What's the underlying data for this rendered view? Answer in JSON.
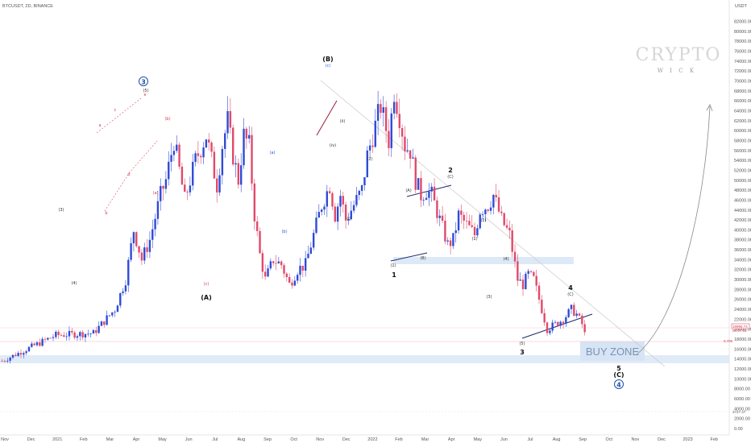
{
  "header": {
    "symbol": "BTCUSDT, 2D, BINANCE"
  },
  "watermark": {
    "brand": "CRYPTO",
    "sub": "W I C K"
  },
  "buy_zone": {
    "label": "BUY ZONE"
  },
  "colors": {
    "up": "#2f4bd6",
    "down": "#e04a6a",
    "zone": "#d6e4f5",
    "zone_text": "#6f8fb8",
    "wave_black": "#111111",
    "circle_blue": "#1f4fa8"
  },
  "chart_data": {
    "type": "candlestick",
    "y_axis": {
      "unit": "USDT",
      "min": 0,
      "max": 85000,
      "ticks": [
        0,
        2000,
        4000,
        6000,
        8000,
        10000,
        12000,
        14000,
        16000,
        18000,
        20000,
        22000,
        24000,
        26000,
        28000,
        30000,
        32000,
        34000,
        36000,
        38000,
        40000,
        42000,
        44000,
        46000,
        48000,
        50000,
        52000,
        54000,
        56000,
        58000,
        60000,
        62000,
        64000,
        66000,
        68000,
        70000,
        72000,
        74000,
        76000,
        78000,
        80000,
        82000
      ]
    },
    "x_axis": {
      "labels": [
        "Nov",
        "Dec",
        "2021",
        "Feb",
        "Mar",
        "Apr",
        "May",
        "Jun",
        "Jul",
        "Aug",
        "Sep",
        "Oct",
        "Nov",
        "Dec",
        "2022",
        "Feb",
        "Mar",
        "Apr",
        "May",
        "Jun",
        "Jul",
        "Aug",
        "Sep",
        "Oct",
        "Nov",
        "Dec",
        "2023",
        "Feb"
      ]
    },
    "price_path": [
      [
        0,
        13600
      ],
      [
        20,
        18800
      ],
      [
        34,
        19200
      ],
      [
        42,
        24000
      ],
      [
        46,
        30000
      ],
      [
        49,
        40000
      ],
      [
        52,
        34000
      ],
      [
        55,
        38000
      ],
      [
        59,
        47000
      ],
      [
        61,
        50000
      ],
      [
        64,
        58000
      ],
      [
        68,
        46000
      ],
      [
        72,
        54000
      ],
      [
        76,
        59000
      ],
      [
        80,
        49000
      ],
      [
        82,
        57000
      ],
      [
        84,
        62000
      ],
      [
        86,
        55000
      ],
      [
        88,
        50000
      ],
      [
        90,
        59000
      ],
      [
        92,
        57000
      ],
      [
        94,
        43000
      ],
      [
        96,
        35000
      ],
      [
        98,
        30000
      ],
      [
        101,
        34000
      ],
      [
        104,
        33000
      ],
      [
        107,
        29000
      ],
      [
        110,
        32000
      ],
      [
        113,
        33000
      ],
      [
        116,
        39000
      ],
      [
        119,
        45000
      ],
      [
        122,
        49000
      ],
      [
        124,
        43000
      ],
      [
        126,
        47000
      ],
      [
        128,
        42000
      ],
      [
        131,
        45000
      ],
      [
        134,
        48000
      ],
      [
        136,
        55000
      ],
      [
        139,
        61000
      ],
      [
        141,
        65000
      ],
      [
        144,
        58000
      ],
      [
        146,
        68000
      ],
      [
        148,
        63000
      ],
      [
        150,
        57000
      ],
      [
        152,
        56000
      ],
      [
        154,
        50000
      ],
      [
        156,
        47000
      ],
      [
        158,
        48000
      ],
      [
        160,
        47000
      ],
      [
        163,
        42000
      ],
      [
        166,
        37000
      ],
      [
        168,
        38000
      ],
      [
        170,
        43000
      ],
      [
        173,
        41000
      ],
      [
        176,
        39000
      ],
      [
        178,
        44000
      ],
      [
        181,
        45000
      ],
      [
        183,
        47000
      ],
      [
        186,
        42000
      ],
      [
        189,
        39000
      ],
      [
        192,
        30000
      ],
      [
        194,
        29000
      ],
      [
        196,
        31000
      ],
      [
        198,
        30000
      ],
      [
        200,
        26000
      ],
      [
        203,
        20000
      ],
      [
        206,
        21000
      ],
      [
        209,
        22000
      ],
      [
        212,
        24000
      ],
      [
        214,
        23000
      ],
      [
        216,
        21000
      ],
      [
        217,
        19000
      ]
    ],
    "annotations": {
      "wave_circle_3": "3",
      "wave_B": "(B)",
      "wave_B_c": "(c)",
      "wave_A": "(A)",
      "wave_1": "1",
      "wave_2": "2",
      "wave_2_C": "(C)",
      "wave_3": "3",
      "wave_4": "4",
      "wave_4_C": "(C)",
      "wave_5": "5",
      "wave_5_C": "(C)",
      "wave_circle_4": "4",
      "sub_A": "(A)",
      "sub_B": "(B)",
      "sub_a": "(a)",
      "sub_b": "(b)",
      "red_a": "(a)",
      "red_b": "(b)",
      "red_c": "(c)",
      "red_a_small": "a",
      "red_b_small": "b",
      "red_c_small": "c",
      "red_d_small": "d",
      "red_e_small": "e",
      "wave_3_small": "(3)",
      "wave_4_small": "(4)",
      "wave_5_small": "(5)",
      "wave_1_small": "(1)",
      "wave_2_small": "(2)",
      "wave_1b_small": "(1)",
      "wave_2b_small": "(2)",
      "wave_3b_small": "(3)",
      "wave_4b_small": "(4)",
      "wave_5b_small": "(5)",
      "wave_ii_small": "(ii)",
      "wave_i_small": "(i)",
      "wave_iv_small": "(iv)",
      "price_tag": "19996.74",
      "price_tag2": "00:57:51",
      "level_tag": "0.786",
      "bottom_tag": "3727.47"
    }
  }
}
